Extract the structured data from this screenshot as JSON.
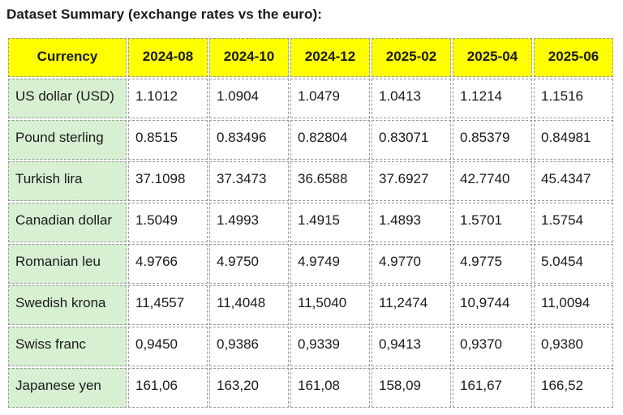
{
  "page": {
    "title": "Dataset Summary (exchange rates vs the euro):"
  },
  "colors": {
    "header_bg": "#ffff00",
    "row_label_bg": "#d7f0d2",
    "cell_border": "#9a9a9a",
    "text": "#1a1a1a"
  },
  "chart_data": {
    "type": "table",
    "title": "Dataset Summary (exchange rates vs the euro):",
    "columns": [
      "Currency",
      "2024-08",
      "2024-10",
      "2024-12",
      "2025-02",
      "2025-04",
      "2025-06"
    ],
    "rows": [
      {
        "currency": "US dollar (USD)",
        "values": [
          "1.1012",
          "1.0904",
          "1.0479",
          "1.0413",
          "1.1214",
          "1.1516"
        ]
      },
      {
        "currency": "Pound sterling",
        "values": [
          "0.8515",
          "0.83496",
          "0.82804",
          "0.83071",
          "0.85379",
          "0.84981"
        ]
      },
      {
        "currency": "Turkish lira",
        "values": [
          "37.1098",
          "37.3473",
          "36.6588",
          "37.6927",
          "42.7740",
          "45.4347"
        ]
      },
      {
        "currency": "Canadian dollar",
        "values": [
          "1.5049",
          "1.4993",
          "1.4915",
          "1.4893",
          "1.5701",
          "1.5754"
        ]
      },
      {
        "currency": "Romanian leu",
        "values": [
          "4.9766",
          "4.9750",
          "4.9749",
          "4.9770",
          "4.9775",
          "5.0454"
        ]
      },
      {
        "currency": "Swedish krona",
        "values": [
          "11,4557",
          "11,4048",
          "11,5040",
          "11,2474",
          "10,9744",
          "11,0094"
        ]
      },
      {
        "currency": "Swiss franc",
        "values": [
          "0,9450",
          "0,9386",
          "0,9339",
          "0,9413",
          "0,9370",
          "0,9380"
        ]
      },
      {
        "currency": "Japanese yen",
        "values": [
          "161,06",
          "163,20",
          "161,08",
          "158,09",
          "161,67",
          "166,52"
        ]
      }
    ]
  }
}
